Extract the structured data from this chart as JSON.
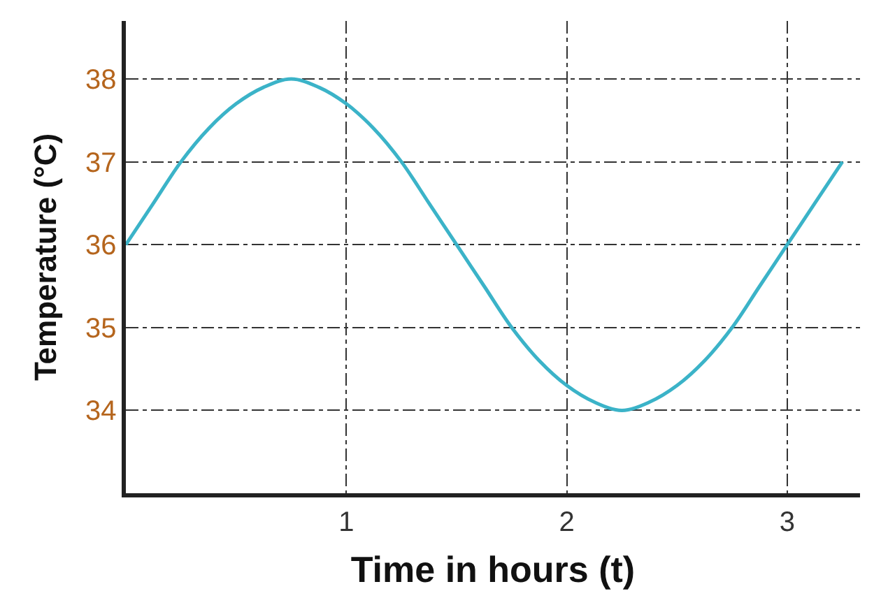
{
  "chart_data": {
    "type": "line",
    "xlabel": "Time in hours (t)",
    "ylabel": "Temperature (°C)",
    "x": [
      0,
      0.125,
      0.25,
      0.375,
      0.5,
      0.625,
      0.75,
      0.875,
      1,
      1.125,
      1.25,
      1.375,
      1.5,
      1.625,
      1.75,
      1.875,
      2,
      2.125,
      2.25,
      2.375,
      2.5,
      2.625,
      2.75,
      2.875,
      3,
      3.125,
      3.25
    ],
    "series": [
      {
        "color": "#3bb3c8",
        "values": [
          36,
          36.5,
          37,
          37.4,
          37.7,
          37.9,
          38,
          37.9,
          37.7,
          37.4,
          37,
          36.5,
          36,
          35.5,
          35,
          34.6,
          34.3,
          34.1,
          34,
          34.1,
          34.3,
          34.6,
          35,
          35.5,
          36,
          36.5,
          37
        ]
      }
    ],
    "xlim": [
      0,
      3.33
    ],
    "ylim": [
      33,
      38.7
    ],
    "xticks": [
      1,
      2,
      3
    ],
    "yticks": [
      34,
      35,
      36,
      37,
      38
    ],
    "grid": true,
    "line_style": "solid",
    "marker": "none"
  }
}
